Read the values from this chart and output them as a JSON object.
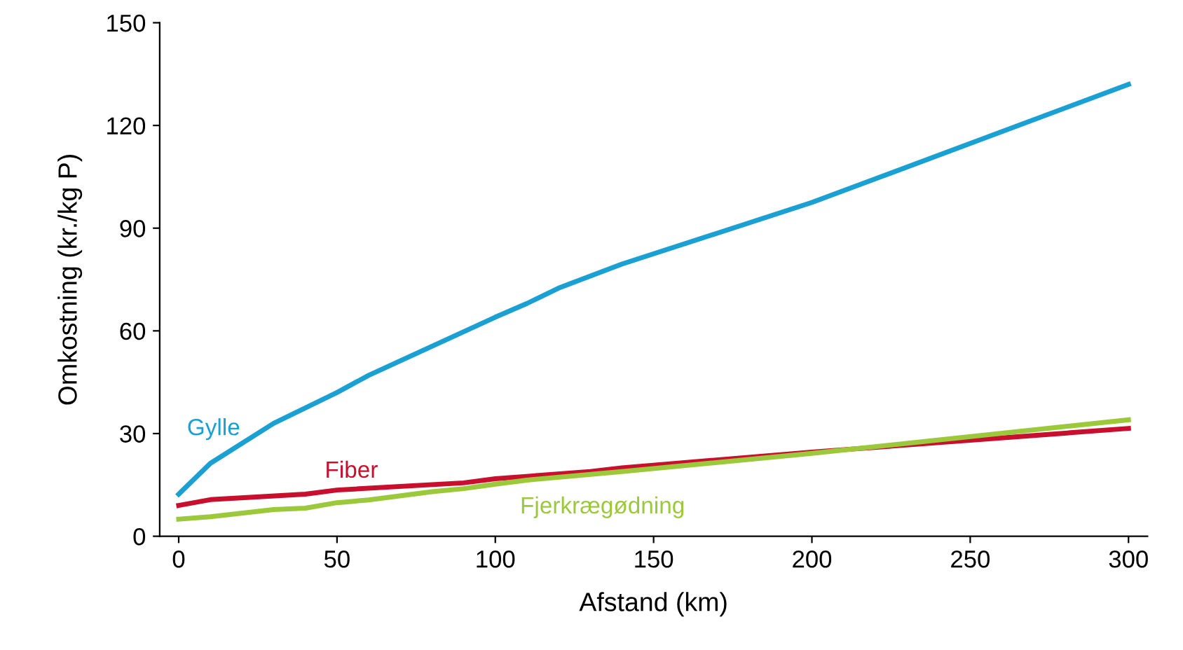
{
  "chart_data": {
    "type": "line",
    "xlabel": "Afstand (km)",
    "ylabel": "Omkostning (kr./kg P)",
    "xlim": [
      -6,
      306
    ],
    "xticks": [
      0,
      50,
      100,
      150,
      200,
      250,
      300
    ],
    "ylim": [
      0,
      150
    ],
    "yticks": [
      0,
      30,
      60,
      90,
      120,
      150
    ],
    "grid": false,
    "legend": false,
    "marker": "none",
    "line_style": "solid",
    "series": [
      {
        "name": "Gylle",
        "color": "#1aa0d2",
        "x": [
          0,
          10,
          30,
          50,
          60,
          100,
          110,
          120,
          140,
          200,
          300
        ],
        "values": [
          12.3,
          21.3,
          33,
          42,
          47,
          64,
          68,
          72.5,
          79.5,
          97.5,
          132
        ]
      },
      {
        "name": "Fiber",
        "color": "#c8102e",
        "x": [
          0,
          10,
          40,
          50,
          90,
          100,
          130,
          140,
          200,
          300
        ],
        "values": [
          9,
          10.7,
          12.3,
          13.5,
          15.6,
          16.8,
          18.9,
          20,
          24.6,
          31.5
        ]
      },
      {
        "name": "Fjerkrægødning",
        "color": "#9cc83c",
        "x": [
          0,
          10,
          30,
          40,
          50,
          60,
          80,
          90,
          100,
          110,
          140,
          200,
          300
        ],
        "values": [
          5,
          5.7,
          7.8,
          8.2,
          9.8,
          10.6,
          13,
          13.9,
          15.2,
          16.4,
          18.9,
          24.2,
          34
        ]
      }
    ]
  }
}
